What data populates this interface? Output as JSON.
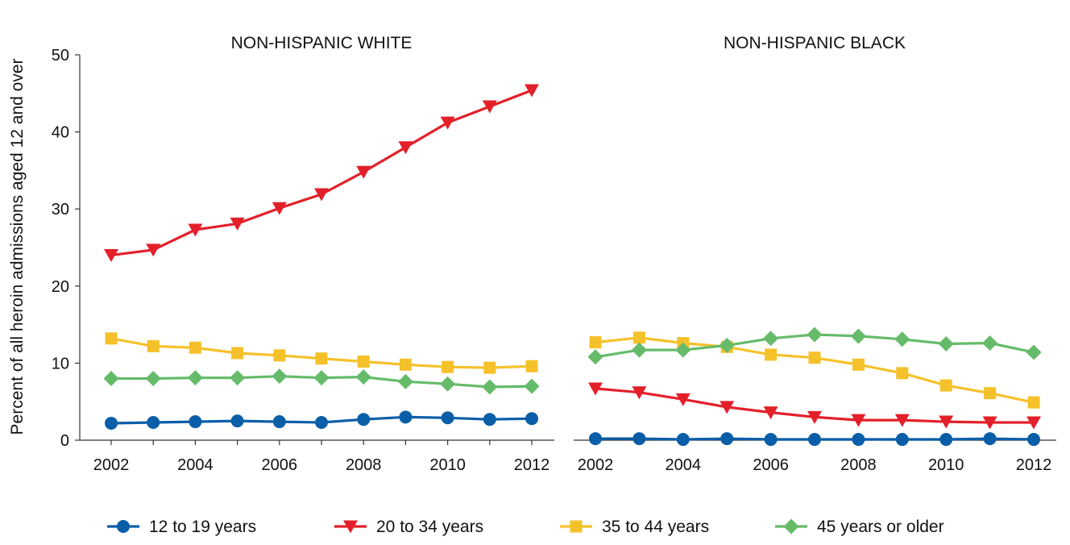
{
  "chart_data": {
    "type": "line",
    "ylabel": "Percent of all heroin admissions aged 12 and over",
    "ylim": [
      0,
      50
    ],
    "yticks": [
      0,
      10,
      20,
      30,
      40,
      50
    ],
    "x": [
      2002,
      2003,
      2004,
      2005,
      2006,
      2007,
      2008,
      2009,
      2010,
      2011,
      2012
    ],
    "xticks": [
      "2002",
      "2004",
      "2006",
      "2008",
      "2010",
      "2012"
    ],
    "legend_position": "bottom",
    "grid": false,
    "panels": [
      {
        "title": "NON-HISPANIC WHITE",
        "series": [
          {
            "name": "12 to 19 years",
            "color": "#0a5ea8",
            "marker": "circle",
            "values": [
              2.2,
              2.3,
              2.4,
              2.5,
              2.4,
              2.3,
              2.7,
              3.0,
              2.9,
              2.7,
              2.8
            ]
          },
          {
            "name": "20 to 34 years",
            "color": "#e3202a",
            "marker": "triangle-down",
            "values": [
              24.0,
              24.7,
              27.3,
              28.1,
              30.1,
              31.9,
              34.8,
              38.0,
              41.2,
              43.3,
              45.4
            ]
          },
          {
            "name": "35 to 44 years",
            "color": "#f5c12a",
            "marker": "square",
            "values": [
              13.2,
              12.2,
              12.0,
              11.3,
              11.0,
              10.6,
              10.2,
              9.8,
              9.5,
              9.4,
              9.6
            ]
          },
          {
            "name": "45 years or older",
            "color": "#66bb6a",
            "marker": "diamond",
            "values": [
              8.0,
              8.0,
              8.1,
              8.1,
              8.3,
              8.1,
              8.2,
              7.6,
              7.3,
              6.9,
              7.0
            ]
          }
        ]
      },
      {
        "title": "NON-HISPANIC BLACK",
        "series": [
          {
            "name": "12 to 19 years",
            "color": "#0a5ea8",
            "marker": "circle",
            "values": [
              0.2,
              0.2,
              0.1,
              0.2,
              0.1,
              0.1,
              0.1,
              0.1,
              0.1,
              0.2,
              0.1
            ]
          },
          {
            "name": "20 to 34 years",
            "color": "#e3202a",
            "marker": "triangle-down",
            "values": [
              6.7,
              6.2,
              5.3,
              4.3,
              3.6,
              3.0,
              2.6,
              2.6,
              2.4,
              2.3,
              2.3
            ]
          },
          {
            "name": "35 to 44 years",
            "color": "#f5c12a",
            "marker": "square",
            "values": [
              12.7,
              13.3,
              12.6,
              12.1,
              11.1,
              10.7,
              9.8,
              8.7,
              7.1,
              6.1,
              4.9
            ]
          },
          {
            "name": "45 years or older",
            "color": "#66bb6a",
            "marker": "diamond",
            "values": [
              10.8,
              11.7,
              11.7,
              12.3,
              13.2,
              13.7,
              13.5,
              13.1,
              12.5,
              12.6,
              11.4
            ]
          }
        ]
      }
    ],
    "legend": [
      {
        "name": "12 to 19 years",
        "color": "#0a5ea8",
        "marker": "circle"
      },
      {
        "name": "20 to 34 years",
        "color": "#e3202a",
        "marker": "triangle-down"
      },
      {
        "name": "35 to 44 years",
        "color": "#f5c12a",
        "marker": "square"
      },
      {
        "name": "45 years or older",
        "color": "#66bb6a",
        "marker": "diamond"
      }
    ]
  }
}
